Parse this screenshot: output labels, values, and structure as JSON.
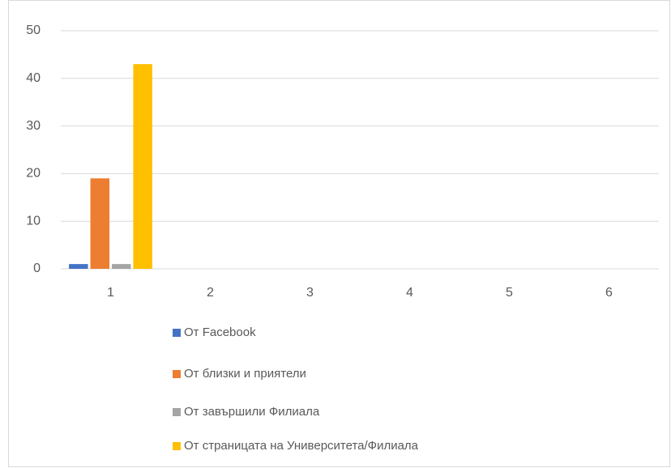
{
  "chart_data": {
    "type": "bar",
    "categories": [
      "1",
      "2",
      "3",
      "4",
      "5",
      "6"
    ],
    "series": [
      {
        "name": "От Facebook",
        "color": "#4472c4",
        "values": [
          1,
          null,
          null,
          null,
          null,
          null
        ]
      },
      {
        "name": "От близки и приятели",
        "color": "#ed7d31",
        "values": [
          19,
          null,
          null,
          null,
          null,
          null
        ]
      },
      {
        "name": "От завършили Филиала",
        "color": "#a5a5a5",
        "values": [
          1,
          null,
          null,
          null,
          null,
          null
        ]
      },
      {
        "name": "От страницата на Университета/Филиала",
        "color": "#ffc000",
        "values": [
          43,
          null,
          null,
          null,
          null,
          null
        ]
      }
    ],
    "ylim": [
      0,
      50
    ],
    "yticks": [
      0,
      10,
      20,
      30,
      40,
      50
    ],
    "grid": true,
    "legend": "bottom"
  }
}
